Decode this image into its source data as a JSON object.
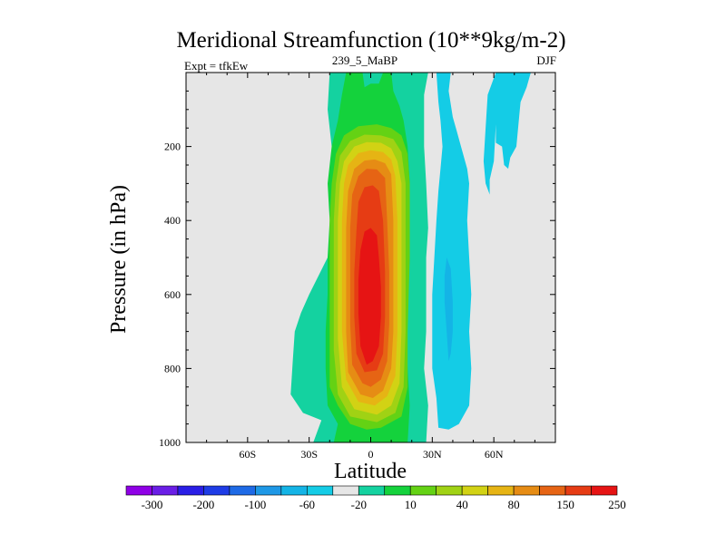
{
  "chart_data": {
    "type": "heatmap",
    "subtype": "filled-contour",
    "title": "Meridional Streamfunction (10**9kg/m-2)",
    "left_label": "Expt = tfkEw",
    "center_label": "239_5_MaBP",
    "right_label": "DJF",
    "xlabel": "Latitude",
    "ylabel": "Pressure (in hPa)",
    "xlim": [
      -90,
      90
    ],
    "ylim": [
      1000,
      0
    ],
    "y_reversed": true,
    "grid": false,
    "background_color": "#e6e6e6",
    "x_ticks": [
      {
        "value": -60,
        "label": "60S"
      },
      {
        "value": -30,
        "label": "30S"
      },
      {
        "value": 0,
        "label": "0"
      },
      {
        "value": 30,
        "label": "30N"
      },
      {
        "value": 60,
        "label": "60N"
      }
    ],
    "y_ticks": [
      {
        "value": 200,
        "label": "200"
      },
      {
        "value": 400,
        "label": "400"
      },
      {
        "value": 600,
        "label": "600"
      },
      {
        "value": 800,
        "label": "800"
      },
      {
        "value": 1000,
        "label": "1000"
      }
    ],
    "colorbar": {
      "colors": [
        "#8f00e6",
        "#6a1ee6",
        "#2a1ee6",
        "#1e3ce6",
        "#1e6ae6",
        "#1e98e6",
        "#14b4e6",
        "#14cce6",
        "#e6e6e6",
        "#14d2a0",
        "#14d23c",
        "#64d214",
        "#a0d214",
        "#d2d214",
        "#e6b414",
        "#e68c14",
        "#e66414",
        "#e63c14",
        "#e61414"
      ],
      "labels": [
        "-300",
        "-200",
        "-100",
        "-60",
        "-20",
        "10",
        "40",
        "80",
        "150",
        "250"
      ]
    },
    "contour_fills": [
      {
        "level": 10,
        "color": "#14d2a0",
        "points": [
          [
            -28,
            1000
          ],
          [
            -24,
            940
          ],
          [
            -33,
            920
          ],
          [
            -39,
            870
          ],
          [
            -38,
            780
          ],
          [
            -37,
            700
          ],
          [
            -34,
            650
          ],
          [
            -30,
            600
          ],
          [
            -21,
            500
          ],
          [
            -18,
            420
          ],
          [
            -18,
            300
          ],
          [
            -19,
            200
          ],
          [
            -21,
            100
          ],
          [
            -20,
            0
          ],
          [
            28,
            0
          ],
          [
            26,
            60
          ],
          [
            26,
            120
          ],
          [
            26,
            200
          ],
          [
            27,
            300
          ],
          [
            28,
            420
          ],
          [
            27,
            500
          ],
          [
            27,
            600
          ],
          [
            27,
            700
          ],
          [
            26,
            800
          ],
          [
            28,
            900
          ],
          [
            27,
            1000
          ]
        ]
      },
      {
        "level": 40,
        "color": "#14d23c",
        "points": [
          [
            -18,
            1000
          ],
          [
            -16,
            950
          ],
          [
            -21,
            900
          ],
          [
            -22,
            800
          ],
          [
            -22,
            700
          ],
          [
            -21,
            600
          ],
          [
            -21,
            500
          ],
          [
            -20,
            400
          ],
          [
            -21,
            300
          ],
          [
            -19,
            200
          ],
          [
            -16,
            130
          ],
          [
            -14,
            60
          ],
          [
            -12,
            0
          ],
          [
            -4,
            0
          ],
          [
            -3,
            40
          ],
          [
            0,
            30
          ],
          [
            4,
            30
          ],
          [
            6,
            0
          ],
          [
            10,
            0
          ],
          [
            11,
            50
          ],
          [
            14,
            90
          ],
          [
            16,
            130
          ],
          [
            18,
            200
          ],
          [
            19,
            300
          ],
          [
            19,
            500
          ],
          [
            18,
            600
          ],
          [
            17,
            700
          ],
          [
            18,
            800
          ],
          [
            19,
            900
          ],
          [
            18,
            1000
          ]
        ]
      },
      {
        "level": 80,
        "color": "#64d214",
        "points": [
          [
            -10,
            950
          ],
          [
            -16,
            900
          ],
          [
            -20,
            850
          ],
          [
            -20,
            700
          ],
          [
            -20,
            550
          ],
          [
            -20,
            400
          ],
          [
            -19,
            300
          ],
          [
            -17,
            220
          ],
          [
            -13,
            170
          ],
          [
            -6,
            145
          ],
          [
            3,
            140
          ],
          [
            10,
            150
          ],
          [
            15,
            170
          ],
          [
            18,
            220
          ],
          [
            19,
            300
          ],
          [
            19,
            500
          ],
          [
            18,
            700
          ],
          [
            18,
            850
          ],
          [
            15,
            930
          ],
          [
            5,
            960
          ],
          [
            -2,
            965
          ]
        ]
      },
      {
        "level": 80.5,
        "color": "#a0d214",
        "points": [
          [
            -10,
            930
          ],
          [
            -16,
            870
          ],
          [
            -18,
            750
          ],
          [
            -18,
            550
          ],
          [
            -18,
            400
          ],
          [
            -17,
            300
          ],
          [
            -15,
            225
          ],
          [
            -10,
            185
          ],
          [
            -3,
            168
          ],
          [
            5,
            170
          ],
          [
            11,
            180
          ],
          [
            15,
            215
          ],
          [
            17,
            300
          ],
          [
            17,
            500
          ],
          [
            17,
            700
          ],
          [
            16,
            850
          ],
          [
            12,
            920
          ],
          [
            3,
            945
          ]
        ]
      },
      {
        "level": 150,
        "color": "#d2d214",
        "points": [
          [
            -8,
            910
          ],
          [
            -14,
            850
          ],
          [
            -16,
            720
          ],
          [
            -16,
            550
          ],
          [
            -16,
            400
          ],
          [
            -15,
            300
          ],
          [
            -13,
            240
          ],
          [
            -8,
            200
          ],
          [
            -2,
            188
          ],
          [
            5,
            190
          ],
          [
            10,
            205
          ],
          [
            13,
            240
          ],
          [
            15,
            300
          ],
          [
            15,
            500
          ],
          [
            15,
            700
          ],
          [
            14,
            840
          ],
          [
            10,
            900
          ],
          [
            3,
            925
          ]
        ]
      },
      {
        "level": 150.5,
        "color": "#e6b414",
        "points": [
          [
            -6,
            890
          ],
          [
            -12,
            830
          ],
          [
            -14,
            700
          ],
          [
            -14,
            550
          ],
          [
            -14,
            400
          ],
          [
            -13,
            300
          ],
          [
            -11,
            250
          ],
          [
            -6,
            218
          ],
          [
            0,
            210
          ],
          [
            6,
            215
          ],
          [
            10,
            235
          ],
          [
            12,
            280
          ],
          [
            13,
            400
          ],
          [
            13,
            550
          ],
          [
            13,
            700
          ],
          [
            12,
            820
          ],
          [
            8,
            875
          ],
          [
            2,
            900
          ]
        ]
      },
      {
        "level": 250,
        "color": "#e68c14",
        "points": [
          [
            -5,
            870
          ],
          [
            -11,
            810
          ],
          [
            -12,
            700
          ],
          [
            -12,
            550
          ],
          [
            -12,
            420
          ],
          [
            -11,
            320
          ],
          [
            -8,
            260
          ],
          [
            -3,
            238
          ],
          [
            2,
            235
          ],
          [
            7,
            245
          ],
          [
            10,
            275
          ],
          [
            11,
            400
          ],
          [
            11,
            550
          ],
          [
            11,
            700
          ],
          [
            10,
            800
          ],
          [
            6,
            860
          ],
          [
            1,
            880
          ]
        ]
      },
      {
        "level": 250.5,
        "color": "#e66414",
        "points": [
          [
            -4,
            840
          ],
          [
            -9,
            790
          ],
          [
            -10,
            680
          ],
          [
            -10,
            540
          ],
          [
            -10,
            420
          ],
          [
            -9,
            330
          ],
          [
            -6,
            280
          ],
          [
            -2,
            260
          ],
          [
            3,
            262
          ],
          [
            7,
            285
          ],
          [
            8,
            400
          ],
          [
            9,
            540
          ],
          [
            9,
            680
          ],
          [
            8,
            780
          ],
          [
            5,
            830
          ],
          [
            0,
            850
          ]
        ]
      },
      {
        "level": 300,
        "color": "#e63c14",
        "points": [
          [
            -3,
            810
          ],
          [
            -7,
            760
          ],
          [
            -8,
            660
          ],
          [
            -8,
            540
          ],
          [
            -7,
            430
          ],
          [
            -6,
            350
          ],
          [
            -3,
            310
          ],
          [
            1,
            305
          ],
          [
            4,
            320
          ],
          [
            6,
            400
          ],
          [
            7,
            540
          ],
          [
            7,
            660
          ],
          [
            6,
            760
          ],
          [
            3,
            805
          ]
        ]
      },
      {
        "level": 350,
        "color": "#e61414",
        "points": [
          [
            -2,
            790
          ],
          [
            -5,
            740
          ],
          [
            -6,
            650
          ],
          [
            -6,
            560
          ],
          [
            -5,
            480
          ],
          [
            -3,
            430
          ],
          [
            0,
            420
          ],
          [
            3,
            440
          ],
          [
            4,
            500
          ],
          [
            5,
            580
          ],
          [
            5,
            660
          ],
          [
            4,
            740
          ],
          [
            1,
            780
          ]
        ]
      },
      {
        "level": -20,
        "color": "#14cce6",
        "points": [
          [
            33,
            960
          ],
          [
            32,
            880
          ],
          [
            30,
            800
          ],
          [
            30,
            700
          ],
          [
            30,
            600
          ],
          [
            31,
            500
          ],
          [
            32,
            400
          ],
          [
            33,
            320
          ],
          [
            34,
            260
          ],
          [
            35,
            200
          ],
          [
            34,
            130
          ],
          [
            33,
            80
          ],
          [
            32,
            0
          ],
          [
            39,
            0
          ],
          [
            38,
            50
          ],
          [
            40,
            120
          ],
          [
            42,
            160
          ],
          [
            44,
            200
          ],
          [
            47,
            260
          ],
          [
            48,
            300
          ],
          [
            47,
            400
          ],
          [
            48,
            500
          ],
          [
            49,
            600
          ],
          [
            48,
            700
          ],
          [
            49,
            800
          ],
          [
            48,
            900
          ],
          [
            43,
            950
          ],
          [
            38,
            965
          ]
        ]
      },
      {
        "level": -20.5,
        "color": "#14cce6",
        "points": [
          [
            61,
            0
          ],
          [
            78,
            0
          ],
          [
            76,
            40
          ],
          [
            73,
            80
          ],
          [
            72,
            140
          ],
          [
            71,
            200
          ],
          [
            68,
            230
          ],
          [
            67,
            260
          ],
          [
            65,
            250
          ],
          [
            64,
            200
          ],
          [
            61,
            190
          ],
          [
            61,
            140
          ],
          [
            60,
            240
          ],
          [
            58,
            290
          ],
          [
            58,
            330
          ],
          [
            56,
            300
          ],
          [
            55,
            240
          ],
          [
            56,
            150
          ],
          [
            57,
            60
          ]
        ]
      },
      {
        "level": -60,
        "color": "#14b4e6",
        "points": [
          [
            38,
            780
          ],
          [
            37,
            700
          ],
          [
            36,
            620
          ],
          [
            36,
            550
          ],
          [
            37,
            500
          ],
          [
            39,
            530
          ],
          [
            40,
            620
          ],
          [
            40,
            700
          ],
          [
            39,
            760
          ]
        ]
      }
    ]
  }
}
